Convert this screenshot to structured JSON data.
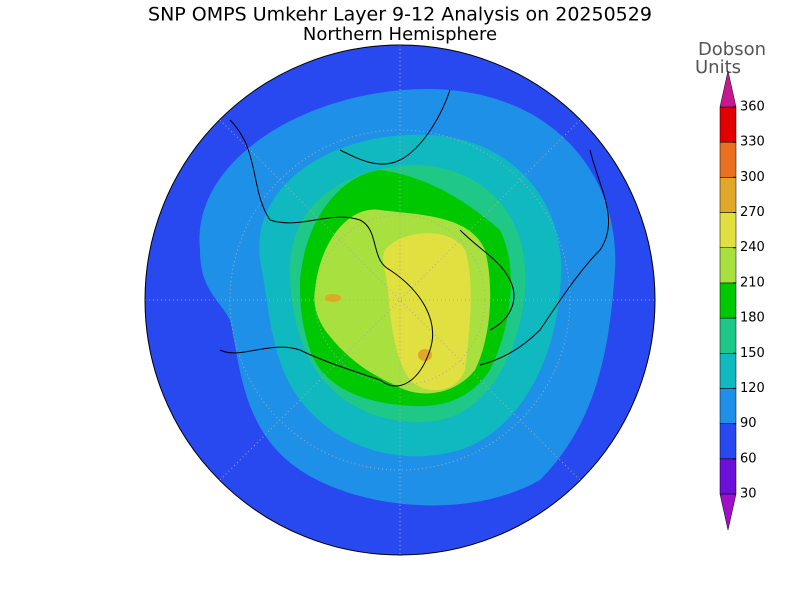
{
  "title": "SNP OMPS Umkehr Layer 9-12 Analysis on 20250529",
  "subtitle": "Northern Hemisphere",
  "colorbar": {
    "title_lines": [
      "Dobson",
      "Units"
    ],
    "ticks": [
      30,
      60,
      90,
      120,
      150,
      180,
      210,
      240,
      270,
      300,
      330,
      360
    ],
    "colors": [
      "#a010c8",
      "#6a10d8",
      "#2848f0",
      "#1e90e8",
      "#10b8c0",
      "#20c888",
      "#00c800",
      "#a8e040",
      "#e0e040",
      "#e0a828",
      "#e87020",
      "#e00000",
      "#c81890"
    ]
  }
}
